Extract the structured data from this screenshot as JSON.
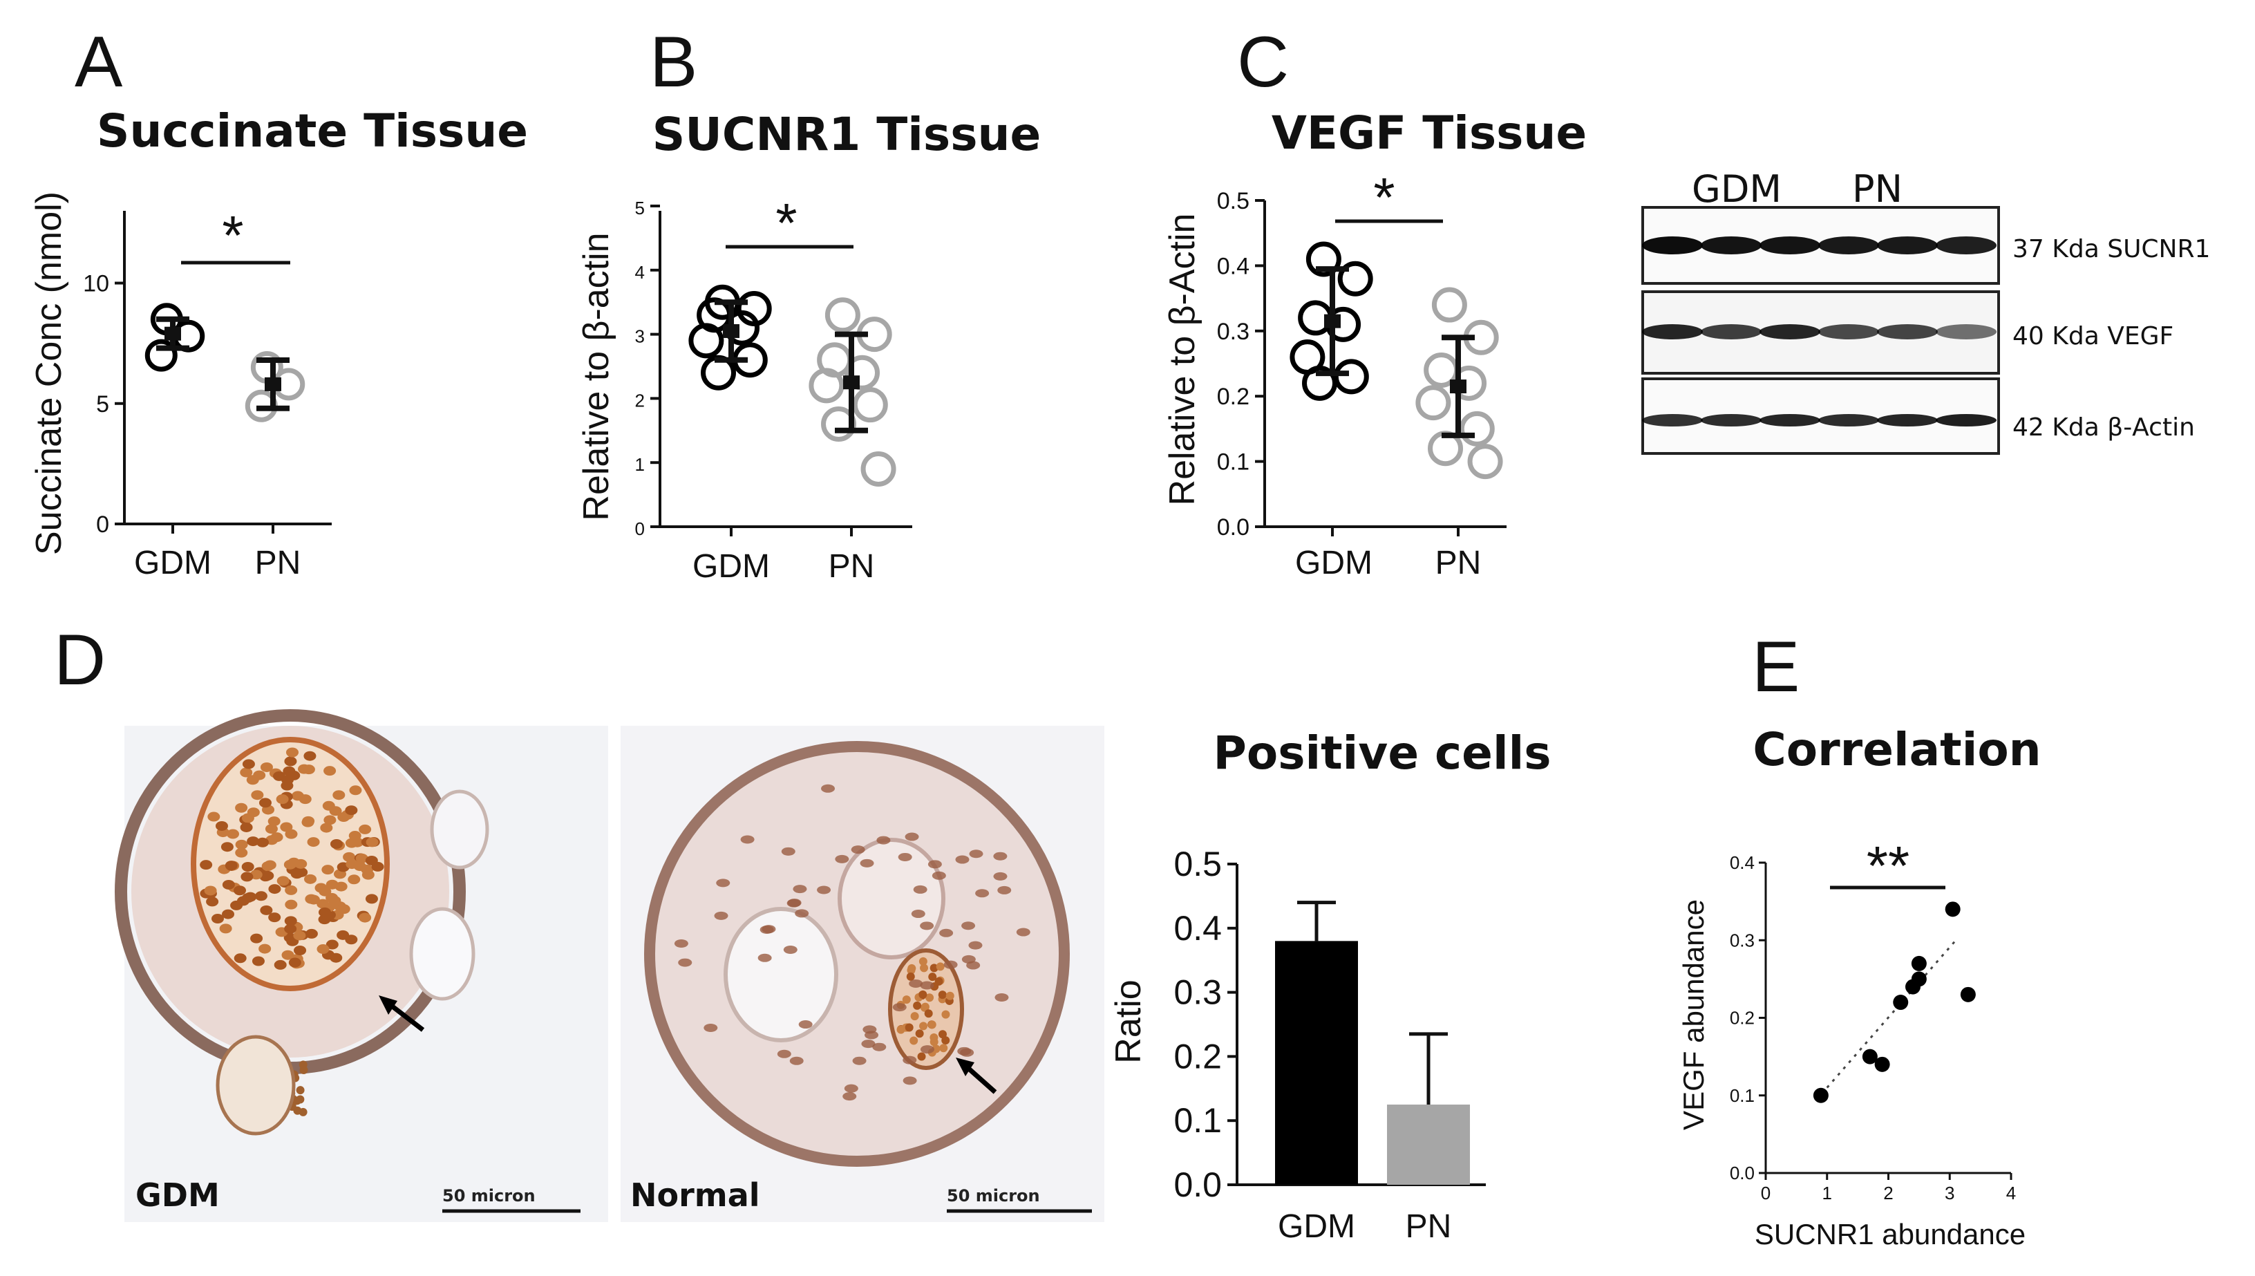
{
  "colors": {
    "gdm": "#000000",
    "pn": "#a6a6a6",
    "pn_bar": "#a6a6a6",
    "gdm_bar": "#000000"
  },
  "panels": {
    "A": {
      "letter": "A",
      "title": "Succinate Tissue",
      "ylabel": "Succinate Conc (nmol)",
      "sig": "*"
    },
    "B": {
      "letter": "B",
      "title": "SUCNR1 Tissue",
      "ylabel": "Relative to β-actin",
      "sig": "*"
    },
    "C": {
      "letter": "C",
      "title": "VEGF Tissue",
      "ylabel": "Relative to β-Actin",
      "sig": "*"
    },
    "D": {
      "letter": "D",
      "micro_left_label": "GDM",
      "micro_right_label": "Normal",
      "scale_label": "50 micron",
      "bar_title": "Positive cells",
      "bar_ylabel": "Ratio"
    },
    "E": {
      "letter": "E",
      "title": "Correlation",
      "xlabel": "SUCNR1 abundance",
      "ylabel": "VEGF abundance",
      "sig": "**"
    }
  },
  "blot": {
    "group_labels": [
      "GDM",
      "PN"
    ],
    "bands": [
      "37 Kda SUCNR1",
      "40 Kda VEGF",
      "42 Kda β-Actin"
    ]
  },
  "chart_data": [
    {
      "id": "A",
      "type": "scatter",
      "title": "Succinate Tissue",
      "ylabel": "Succinate Conc (nmol)",
      "categories": [
        "GDM",
        "PN"
      ],
      "ylim": [
        0,
        13
      ],
      "yticks": [
        "0",
        "5",
        "10"
      ],
      "points": {
        "GDM": [
          8.5,
          7.8,
          7.0
        ],
        "PN": [
          6.5,
          5.8,
          4.9
        ]
      },
      "mean": [
        7.9,
        5.8
      ],
      "error": [
        0.6,
        1.0
      ]
    },
    {
      "id": "B",
      "type": "scatter",
      "title": "SUCNR1 Tissue",
      "ylabel": "Relative to β-actin",
      "categories": [
        "GDM",
        "PN"
      ],
      "ylim": [
        0,
        5
      ],
      "yticks": [
        "0",
        "1",
        "2",
        "3",
        "4",
        "5"
      ],
      "points": {
        "GDM": [
          3.5,
          3.4,
          3.3,
          3.1,
          2.9,
          2.6,
          2.4
        ],
        "PN": [
          3.3,
          3.0,
          2.6,
          2.4,
          2.2,
          1.9,
          1.6,
          0.9
        ]
      },
      "mean": [
        3.05,
        2.25
      ],
      "error": [
        0.45,
        0.75
      ]
    },
    {
      "id": "C",
      "type": "scatter",
      "title": "VEGF Tissue",
      "ylabel": "Relative to β-Actin",
      "categories": [
        "GDM",
        "PN"
      ],
      "ylim": [
        0,
        0.5
      ],
      "yticks": [
        "0.0",
        "0.1",
        "0.2",
        "0.3",
        "0.4",
        "0.5"
      ],
      "points": {
        "GDM": [
          0.41,
          0.38,
          0.32,
          0.31,
          0.26,
          0.23,
          0.22
        ],
        "PN": [
          0.34,
          0.29,
          0.24,
          0.22,
          0.19,
          0.15,
          0.12,
          0.1
        ]
      },
      "mean": [
        0.315,
        0.215
      ],
      "error": [
        0.08,
        0.075
      ]
    },
    {
      "id": "D",
      "type": "bar",
      "title": "Positive cells",
      "ylabel": "Ratio",
      "categories": [
        "GDM",
        "PN"
      ],
      "values": [
        0.38,
        0.125
      ],
      "error": [
        0.06,
        0.11
      ],
      "ylim": [
        0,
        0.5
      ],
      "yticks": [
        "0.0",
        "0.1",
        "0.2",
        "0.3",
        "0.4",
        "0.5"
      ]
    },
    {
      "id": "E",
      "type": "scatter",
      "title": "Correlation",
      "xlabel": "SUCNR1 abundance",
      "ylabel": "VEGF abundance",
      "xlim": [
        0,
        4
      ],
      "ylim": [
        0,
        0.4
      ],
      "xticks": [
        "0",
        "1",
        "2",
        "3",
        "4"
      ],
      "yticks": [
        "0.0",
        "0.1",
        "0.2",
        "0.3",
        "0.4"
      ],
      "points": [
        [
          0.9,
          0.1
        ],
        [
          1.7,
          0.15
        ],
        [
          1.9,
          0.14
        ],
        [
          2.2,
          0.22
        ],
        [
          2.4,
          0.24
        ],
        [
          2.5,
          0.25
        ],
        [
          2.5,
          0.27
        ],
        [
          3.05,
          0.34
        ],
        [
          3.3,
          0.23
        ]
      ],
      "trendline": [
        [
          1.0,
          0.11
        ],
        [
          3.1,
          0.3
        ]
      ]
    }
  ]
}
